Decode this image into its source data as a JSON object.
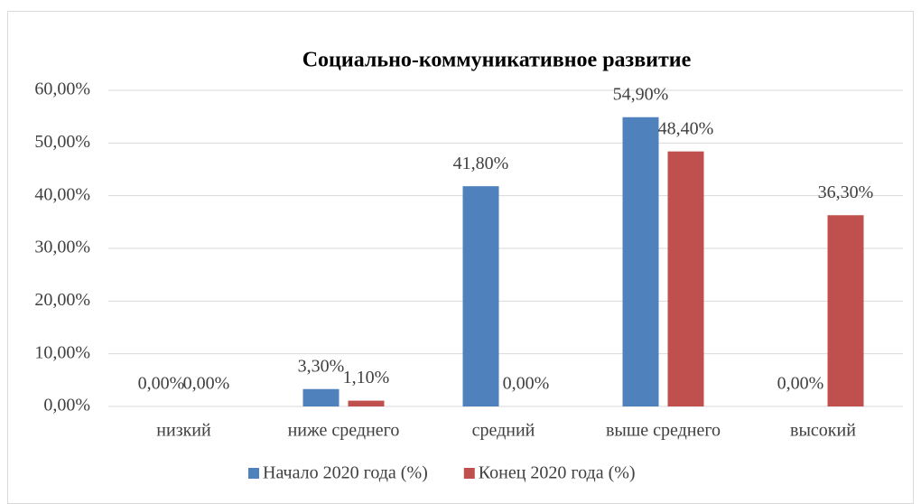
{
  "chart_data": {
    "type": "bar",
    "title": "Социально-коммуникативное развитие",
    "categories": [
      "низкий",
      "ниже среднего",
      "средний",
      "выше среднего",
      "высокий"
    ],
    "series": [
      {
        "name": "Начало 2020 года (%)",
        "color": "#4f81bd",
        "values": [
          0,
          3.3,
          41.8,
          54.9,
          0
        ],
        "value_labels": [
          "0,00%",
          "3,30%",
          "41,80%",
          "54,90%",
          "0,00%"
        ]
      },
      {
        "name": "Конец 2020 года (%)",
        "color": "#c0504d",
        "values": [
          0,
          1.1,
          0,
          48.4,
          36.3
        ],
        "value_labels": [
          "0,00%",
          "1,10%",
          "0,00%",
          "48,40%",
          "36,30%"
        ]
      }
    ],
    "ylim": [
      0,
      60
    ],
    "yticks": [
      {
        "value": 0,
        "label": "0,00%"
      },
      {
        "value": 10,
        "label": "10,00%"
      },
      {
        "value": 20,
        "label": "20,00%"
      },
      {
        "value": 30,
        "label": "30,00%"
      },
      {
        "value": 40,
        "label": "40,00%"
      },
      {
        "value": 50,
        "label": "50,00%"
      },
      {
        "value": 60,
        "label": "60,00%"
      }
    ],
    "grid": true,
    "legend": "bottom"
  }
}
